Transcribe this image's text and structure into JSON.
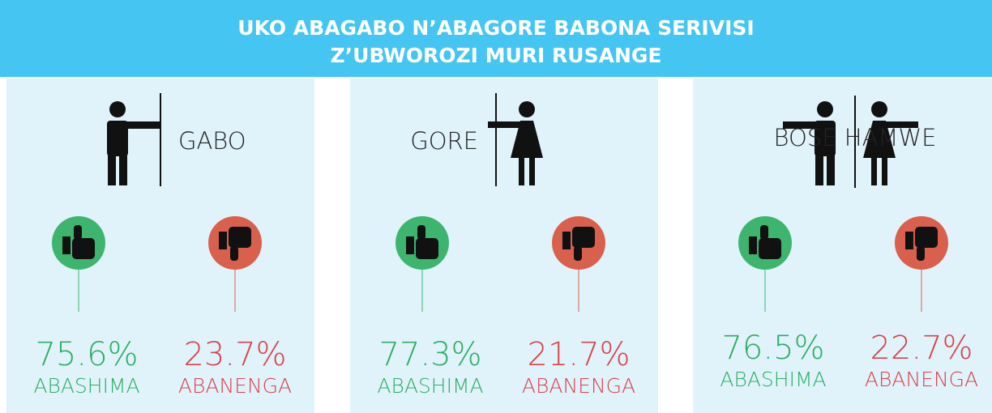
{
  "header": {
    "title": [
      "UKO ABAGABO N’ABAGORE BABONA SERIVISI",
      "Z’UBWOROZI MURI RUSANGE"
    ]
  },
  "panels": [
    {
      "label": "GABO",
      "approve": {
        "value": "75.6%",
        "label": "ABASHIMA"
      },
      "disapprove": {
        "value": "23.7%",
        "label": "ABANENGA"
      }
    },
    {
      "label": "GORE",
      "approve": {
        "value": "77.3%",
        "label": "ABASHIMA"
      },
      "disapprove": {
        "value": "21.7%",
        "label": "ABANENGA"
      }
    },
    {
      "label": "BOSE HAMWE",
      "approve": {
        "value": "76.5%",
        "label": "ABASHIMA"
      },
      "disapprove": {
        "value": "22.7%",
        "label": "ABANENGA"
      }
    }
  ]
}
